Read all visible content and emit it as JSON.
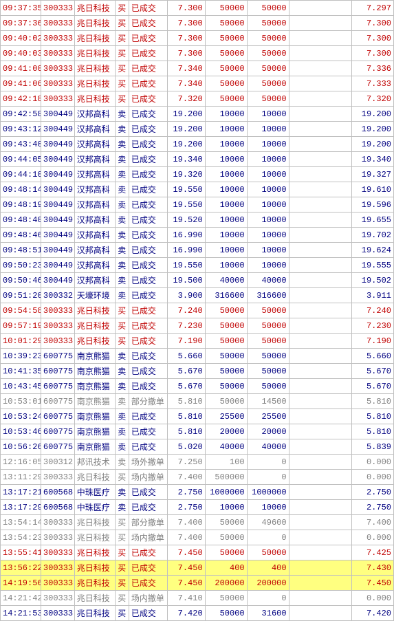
{
  "colors": {
    "red": "#c00000",
    "blue": "#000080",
    "gray": "#808080",
    "hl": "#ffff80",
    "border": "#c0c0c0"
  },
  "rows": [
    {
      "time": "09:37:35",
      "code": "300333",
      "name": "兆日科技",
      "bs": "买",
      "status": "已成交",
      "price": "7.300",
      "q1": "50000",
      "q2": "50000",
      "last": "7.297",
      "color": "red"
    },
    {
      "time": "09:37:36",
      "code": "300333",
      "name": "兆日科技",
      "bs": "买",
      "status": "已成交",
      "price": "7.300",
      "q1": "50000",
      "q2": "50000",
      "last": "7.300",
      "color": "red"
    },
    {
      "time": "09:40:02",
      "code": "300333",
      "name": "兆日科技",
      "bs": "买",
      "status": "已成交",
      "price": "7.300",
      "q1": "50000",
      "q2": "50000",
      "last": "7.300",
      "color": "red"
    },
    {
      "time": "09:40:03",
      "code": "300333",
      "name": "兆日科技",
      "bs": "买",
      "status": "已成交",
      "price": "7.300",
      "q1": "50000",
      "q2": "50000",
      "last": "7.300",
      "color": "red"
    },
    {
      "time": "09:41:00",
      "code": "300333",
      "name": "兆日科技",
      "bs": "买",
      "status": "已成交",
      "price": "7.340",
      "q1": "50000",
      "q2": "50000",
      "last": "7.336",
      "color": "red"
    },
    {
      "time": "09:41:06",
      "code": "300333",
      "name": "兆日科技",
      "bs": "买",
      "status": "已成交",
      "price": "7.340",
      "q1": "50000",
      "q2": "50000",
      "last": "7.333",
      "color": "red"
    },
    {
      "time": "09:42:18",
      "code": "300333",
      "name": "兆日科技",
      "bs": "买",
      "status": "已成交",
      "price": "7.320",
      "q1": "50000",
      "q2": "50000",
      "last": "7.320",
      "color": "red"
    },
    {
      "time": "09:42:58",
      "code": "300449",
      "name": "汉邦高科",
      "bs": "卖",
      "status": "已成交",
      "price": "19.200",
      "q1": "10000",
      "q2": "10000",
      "last": "19.200",
      "color": "blue"
    },
    {
      "time": "09:43:12",
      "code": "300449",
      "name": "汉邦高科",
      "bs": "卖",
      "status": "已成交",
      "price": "19.200",
      "q1": "10000",
      "q2": "10000",
      "last": "19.200",
      "color": "blue"
    },
    {
      "time": "09:43:40",
      "code": "300449",
      "name": "汉邦高科",
      "bs": "卖",
      "status": "已成交",
      "price": "19.200",
      "q1": "10000",
      "q2": "10000",
      "last": "19.200",
      "color": "blue"
    },
    {
      "time": "09:44:05",
      "code": "300449",
      "name": "汉邦高科",
      "bs": "卖",
      "status": "已成交",
      "price": "19.340",
      "q1": "10000",
      "q2": "10000",
      "last": "19.340",
      "color": "blue"
    },
    {
      "time": "09:44:10",
      "code": "300449",
      "name": "汉邦高科",
      "bs": "卖",
      "status": "已成交",
      "price": "19.320",
      "q1": "10000",
      "q2": "10000",
      "last": "19.327",
      "color": "blue"
    },
    {
      "time": "09:48:14",
      "code": "300449",
      "name": "汉邦高科",
      "bs": "卖",
      "status": "已成交",
      "price": "19.550",
      "q1": "10000",
      "q2": "10000",
      "last": "19.610",
      "color": "blue"
    },
    {
      "time": "09:48:19",
      "code": "300449",
      "name": "汉邦高科",
      "bs": "卖",
      "status": "已成交",
      "price": "19.550",
      "q1": "10000",
      "q2": "10000",
      "last": "19.596",
      "color": "blue"
    },
    {
      "time": "09:48:40",
      "code": "300449",
      "name": "汉邦高科",
      "bs": "卖",
      "status": "已成交",
      "price": "19.520",
      "q1": "10000",
      "q2": "10000",
      "last": "19.655",
      "color": "blue"
    },
    {
      "time": "09:48:46",
      "code": "300449",
      "name": "汉邦高科",
      "bs": "卖",
      "status": "已成交",
      "price": "16.990",
      "q1": "10000",
      "q2": "10000",
      "last": "19.702",
      "color": "blue"
    },
    {
      "time": "09:48:51",
      "code": "300449",
      "name": "汉邦高科",
      "bs": "卖",
      "status": "已成交",
      "price": "16.990",
      "q1": "10000",
      "q2": "10000",
      "last": "19.624",
      "color": "blue"
    },
    {
      "time": "09:50:23",
      "code": "300449",
      "name": "汉邦高科",
      "bs": "卖",
      "status": "已成交",
      "price": "19.550",
      "q1": "10000",
      "q2": "10000",
      "last": "19.555",
      "color": "blue"
    },
    {
      "time": "09:50:46",
      "code": "300449",
      "name": "汉邦高科",
      "bs": "卖",
      "status": "已成交",
      "price": "19.500",
      "q1": "40000",
      "q2": "40000",
      "last": "19.502",
      "color": "blue"
    },
    {
      "time": "09:51:20",
      "code": "300332",
      "name": "天壕环境",
      "bs": "卖",
      "status": "已成交",
      "price": "3.900",
      "q1": "316600",
      "q2": "316600",
      "last": "3.911",
      "color": "blue"
    },
    {
      "time": "09:54:58",
      "code": "300333",
      "name": "兆日科技",
      "bs": "买",
      "status": "已成交",
      "price": "7.240",
      "q1": "50000",
      "q2": "50000",
      "last": "7.240",
      "color": "red"
    },
    {
      "time": "09:57:19",
      "code": "300333",
      "name": "兆日科技",
      "bs": "买",
      "status": "已成交",
      "price": "7.230",
      "q1": "50000",
      "q2": "50000",
      "last": "7.230",
      "color": "red"
    },
    {
      "time": "10:01:29",
      "code": "300333",
      "name": "兆日科技",
      "bs": "买",
      "status": "已成交",
      "price": "7.190",
      "q1": "50000",
      "q2": "50000",
      "last": "7.190",
      "color": "red"
    },
    {
      "time": "10:39:23",
      "code": "600775",
      "name": "南京熊猫",
      "bs": "卖",
      "status": "已成交",
      "price": "5.660",
      "q1": "50000",
      "q2": "50000",
      "last": "5.660",
      "color": "blue"
    },
    {
      "time": "10:41:35",
      "code": "600775",
      "name": "南京熊猫",
      "bs": "卖",
      "status": "已成交",
      "price": "5.670",
      "q1": "50000",
      "q2": "50000",
      "last": "5.670",
      "color": "blue"
    },
    {
      "time": "10:43:45",
      "code": "600775",
      "name": "南京熊猫",
      "bs": "卖",
      "status": "已成交",
      "price": "5.670",
      "q1": "50000",
      "q2": "50000",
      "last": "5.670",
      "color": "blue"
    },
    {
      "time": "10:53:01",
      "code": "600775",
      "name": "南京熊猫",
      "bs": "卖",
      "status": "部分撤单",
      "price": "5.810",
      "q1": "50000",
      "q2": "14500",
      "last": "5.810",
      "color": "gray"
    },
    {
      "time": "10:53:24",
      "code": "600775",
      "name": "南京熊猫",
      "bs": "卖",
      "status": "已成交",
      "price": "5.810",
      "q1": "25500",
      "q2": "25500",
      "last": "5.810",
      "color": "blue"
    },
    {
      "time": "10:53:46",
      "code": "600775",
      "name": "南京熊猫",
      "bs": "卖",
      "status": "已成交",
      "price": "5.810",
      "q1": "20000",
      "q2": "20000",
      "last": "5.810",
      "color": "blue"
    },
    {
      "time": "10:56:26",
      "code": "600775",
      "name": "南京熊猫",
      "bs": "卖",
      "status": "已成交",
      "price": "5.020",
      "q1": "40000",
      "q2": "40000",
      "last": "5.839",
      "color": "blue"
    },
    {
      "time": "12:16:05",
      "code": "300312",
      "name": "邦讯技术",
      "bs": "卖",
      "status": "场外撤单",
      "price": "7.250",
      "q1": "100",
      "q2": "0",
      "last": "0.000",
      "color": "gray"
    },
    {
      "time": "13:11:29",
      "code": "300333",
      "name": "兆日科技",
      "bs": "买",
      "status": "场内撤单",
      "price": "7.400",
      "q1": "500000",
      "q2": "0",
      "last": "0.000",
      "color": "gray"
    },
    {
      "time": "13:17:21",
      "code": "600568",
      "name": "中珠医疗",
      "bs": "卖",
      "status": "已成交",
      "price": "2.750",
      "q1": "1000000",
      "q2": "1000000",
      "last": "2.750",
      "color": "blue"
    },
    {
      "time": "13:17:29",
      "code": "600568",
      "name": "中珠医疗",
      "bs": "卖",
      "status": "已成交",
      "price": "2.750",
      "q1": "10000",
      "q2": "10000",
      "last": "2.750",
      "color": "blue"
    },
    {
      "time": "13:54:14",
      "code": "300333",
      "name": "兆日科技",
      "bs": "买",
      "status": "部分撤单",
      "price": "7.400",
      "q1": "50000",
      "q2": "49600",
      "last": "7.400",
      "color": "gray"
    },
    {
      "time": "13:54:23",
      "code": "300333",
      "name": "兆日科技",
      "bs": "买",
      "status": "场内撤单",
      "price": "7.400",
      "q1": "50000",
      "q2": "0",
      "last": "0.000",
      "color": "gray"
    },
    {
      "time": "13:55:41",
      "code": "300333",
      "name": "兆日科技",
      "bs": "买",
      "status": "已成交",
      "price": "7.450",
      "q1": "50000",
      "q2": "50000",
      "last": "7.425",
      "color": "red"
    },
    {
      "time": "13:56:22",
      "code": "300333",
      "name": "兆日科技",
      "bs": "买",
      "status": "已成交",
      "price": "7.450",
      "q1": "400",
      "q2": "400",
      "last": "7.430",
      "color": "red",
      "hl": true
    },
    {
      "time": "14:19:56",
      "code": "300333",
      "name": "兆日科技",
      "bs": "买",
      "status": "已成交",
      "price": "7.450",
      "q1": "200000",
      "q2": "200000",
      "last": "7.450",
      "color": "red",
      "hl": true
    },
    {
      "time": "14:21:42",
      "code": "300333",
      "name": "兆日科技",
      "bs": "买",
      "status": "场内撤单",
      "price": "7.410",
      "q1": "50000",
      "q2": "0",
      "last": "0.000",
      "color": "gray"
    },
    {
      "time": "14:21:53",
      "code": "300333",
      "name": "兆日科技",
      "bs": "买",
      "status": "已成交",
      "price": "7.420",
      "q1": "50000",
      "q2": "31600",
      "last": "7.420",
      "color": "blue"
    }
  ]
}
